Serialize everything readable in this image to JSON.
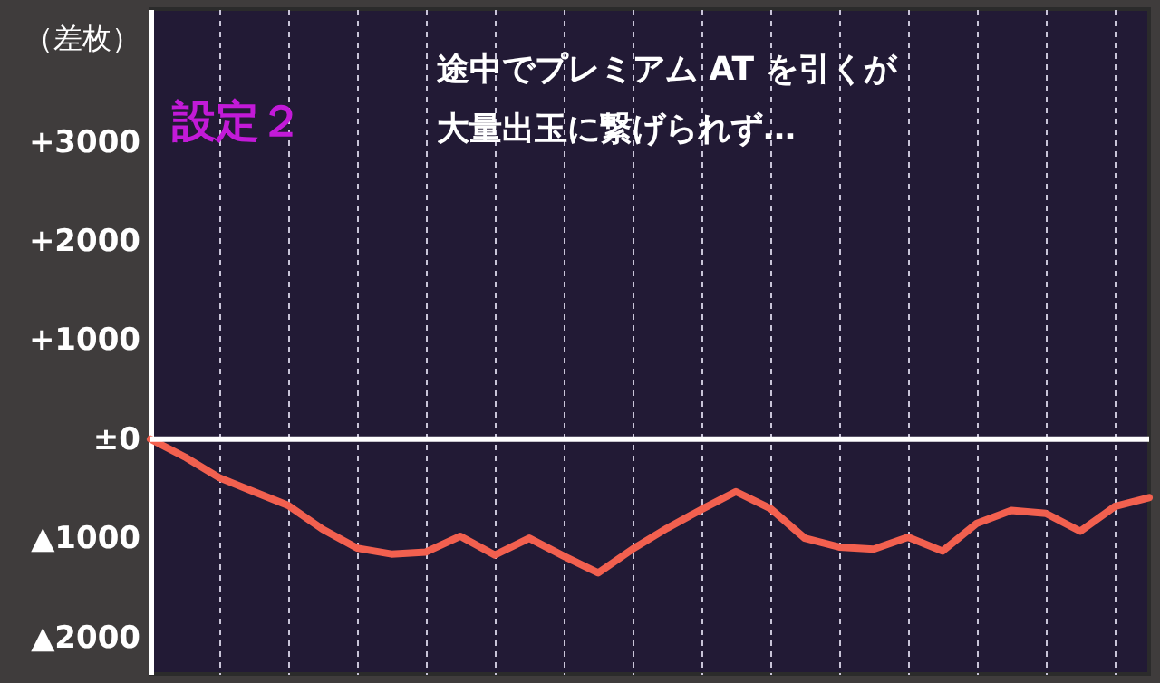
{
  "chart_data": {
    "type": "line",
    "ylabel": "（差枚）",
    "annotations": [
      "設定２",
      "途中でプレミアム AT を引くが",
      "大量出玉に繋げられず…"
    ],
    "categories": [
      null,
      null,
      null,
      null,
      null,
      null,
      null,
      null,
      null,
      null,
      null,
      null,
      null,
      null,
      null,
      null,
      null,
      null,
      null,
      null,
      null,
      null,
      null,
      null,
      null,
      null,
      null,
      null,
      null,
      null
    ],
    "series": [
      {
        "color": "#f2604f",
        "values": [
          0,
          -180,
          -390,
          -530,
          -670,
          -910,
          -1100,
          -1160,
          -1140,
          -980,
          -1170,
          -1000,
          -1180,
          -1350,
          -1110,
          -900,
          -710,
          -530,
          -700,
          -1000,
          -1090,
          -1110,
          -990,
          -1130,
          -850,
          -720,
          -750,
          -930,
          -680,
          -590
        ]
      }
    ],
    "ylim": [
      -2370,
      4340
    ],
    "yticks": [
      {
        "value": -2000,
        "label": "▲2000"
      },
      {
        "value": -1000,
        "label": "▲1000"
      },
      {
        "value": 0,
        "label": "±0"
      },
      {
        "value": 1000,
        "label": "+1000"
      },
      {
        "value": 2000,
        "label": "+2000"
      },
      {
        "value": 3000,
        "label": "+3000"
      }
    ],
    "ref_lines": [
      {
        "axis": "y",
        "value": 0,
        "label": null,
        "color": "#ffffff"
      }
    ],
    "grid": "x",
    "tick_labels": "y",
    "marker": "none",
    "line_style": "solid"
  }
}
